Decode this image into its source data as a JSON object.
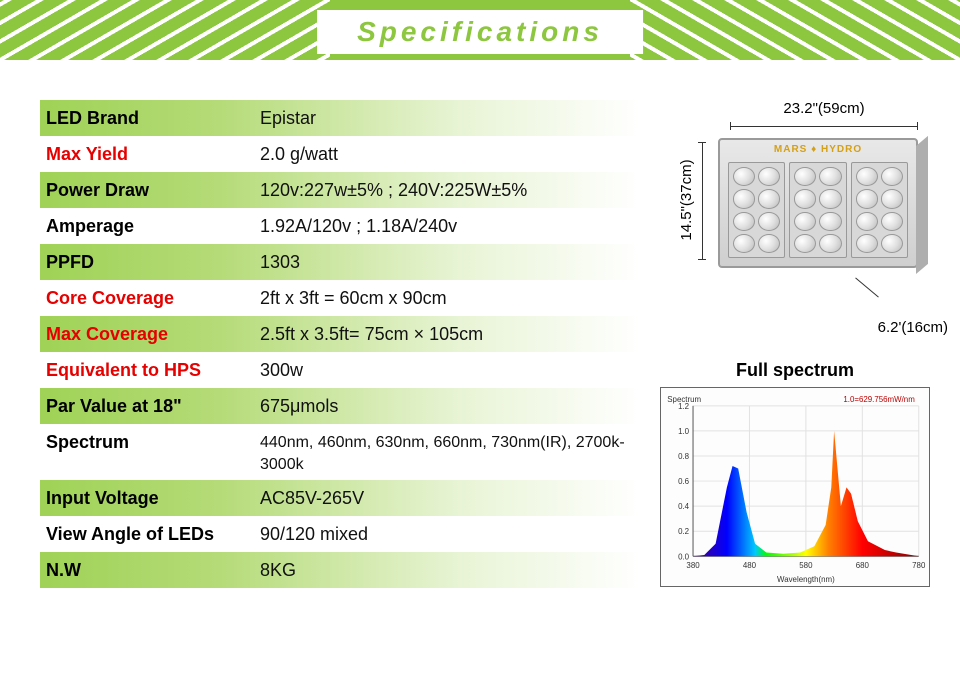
{
  "header": {
    "title": "Specifications"
  },
  "specs": {
    "rows": [
      {
        "label": "LED Brand",
        "value": "Epistar",
        "grad": true,
        "red": false
      },
      {
        "label": "Max Yield",
        "value": "2.0 g/watt",
        "grad": false,
        "red": true
      },
      {
        "label": "Power  Draw",
        "value": "120v:227w±5% ; 240V:225W±5%",
        "grad": true,
        "red": false
      },
      {
        "label": "Amperage",
        "value": "1.92A/120v ; 1.18A/240v",
        "grad": false,
        "red": false
      },
      {
        "label": "PPFD",
        "value": "1303",
        "grad": true,
        "red": false
      },
      {
        "label": "Core Coverage",
        "value": "2ft x 3ft = 60cm x 90cm",
        "grad": false,
        "red": true
      },
      {
        "label": "Max Coverage",
        "value": "2.5ft x 3.5ft= 75cm × 105cm",
        "grad": true,
        "red": true
      },
      {
        "label": "Equivalent to HPS",
        "value": "300w",
        "grad": false,
        "red": true
      },
      {
        "label": "Par Value at 18\"",
        "value": "675μmols",
        "grad": true,
        "red": false
      },
      {
        "label": "Spectrum",
        "value": "440nm, 460nm, 630nm, 660nm, 730nm(IR), 2700k-3000k",
        "grad": false,
        "red": false,
        "small": true,
        "tall": true
      },
      {
        "label": "Input Voltage",
        "value": "AC85V-265V",
        "grad": true,
        "red": false
      },
      {
        "label": "View Angle of LEDs",
        "value": "90/120 mixed",
        "grad": false,
        "red": false
      },
      {
        "label": "N.W",
        "value": "8KG",
        "grad": true,
        "red": false
      }
    ]
  },
  "diagram": {
    "width_label": "23.2\"(59cm)",
    "height_label": "14.5\"(37cm)",
    "depth_label": "6.2'(16cm)",
    "brand": "MARS ♦ HYDRO"
  },
  "spectrum": {
    "title": "Full spectrum",
    "peak_label": "1.0=629.756mW/nm",
    "axis_label_y": "Spectrum",
    "axis_label_x": "Wavelength(nm)",
    "x_min": 380,
    "x_max": 780,
    "x_ticks": [
      380,
      480,
      580,
      680,
      780
    ],
    "y_min": 0,
    "y_max": 1.2,
    "y_ticks": [
      0.0,
      0.2,
      0.4,
      0.6,
      0.8,
      1.0,
      1.2
    ],
    "gradient_stops": [
      {
        "wl": 380,
        "color": "#4b0082"
      },
      {
        "wl": 440,
        "color": "#0000ff"
      },
      {
        "wl": 490,
        "color": "#00c8ff"
      },
      {
        "wl": 510,
        "color": "#00ff00"
      },
      {
        "wl": 580,
        "color": "#ffff00"
      },
      {
        "wl": 620,
        "color": "#ff8000"
      },
      {
        "wl": 680,
        "color": "#ff0000"
      },
      {
        "wl": 780,
        "color": "#8b0000"
      }
    ],
    "curve": [
      [
        380,
        0.0
      ],
      [
        400,
        0.01
      ],
      [
        420,
        0.1
      ],
      [
        440,
        0.55
      ],
      [
        450,
        0.72
      ],
      [
        460,
        0.7
      ],
      [
        475,
        0.35
      ],
      [
        490,
        0.1
      ],
      [
        510,
        0.03
      ],
      [
        540,
        0.02
      ],
      [
        570,
        0.03
      ],
      [
        595,
        0.08
      ],
      [
        615,
        0.25
      ],
      [
        625,
        0.55
      ],
      [
        630,
        1.0
      ],
      [
        636,
        0.7
      ],
      [
        642,
        0.4
      ],
      [
        652,
        0.55
      ],
      [
        660,
        0.5
      ],
      [
        672,
        0.28
      ],
      [
        690,
        0.12
      ],
      [
        720,
        0.05
      ],
      [
        740,
        0.03
      ],
      [
        780,
        0.0
      ]
    ],
    "grid_color": "#e2e2e2",
    "axis_color": "#555",
    "font_size": 8
  }
}
